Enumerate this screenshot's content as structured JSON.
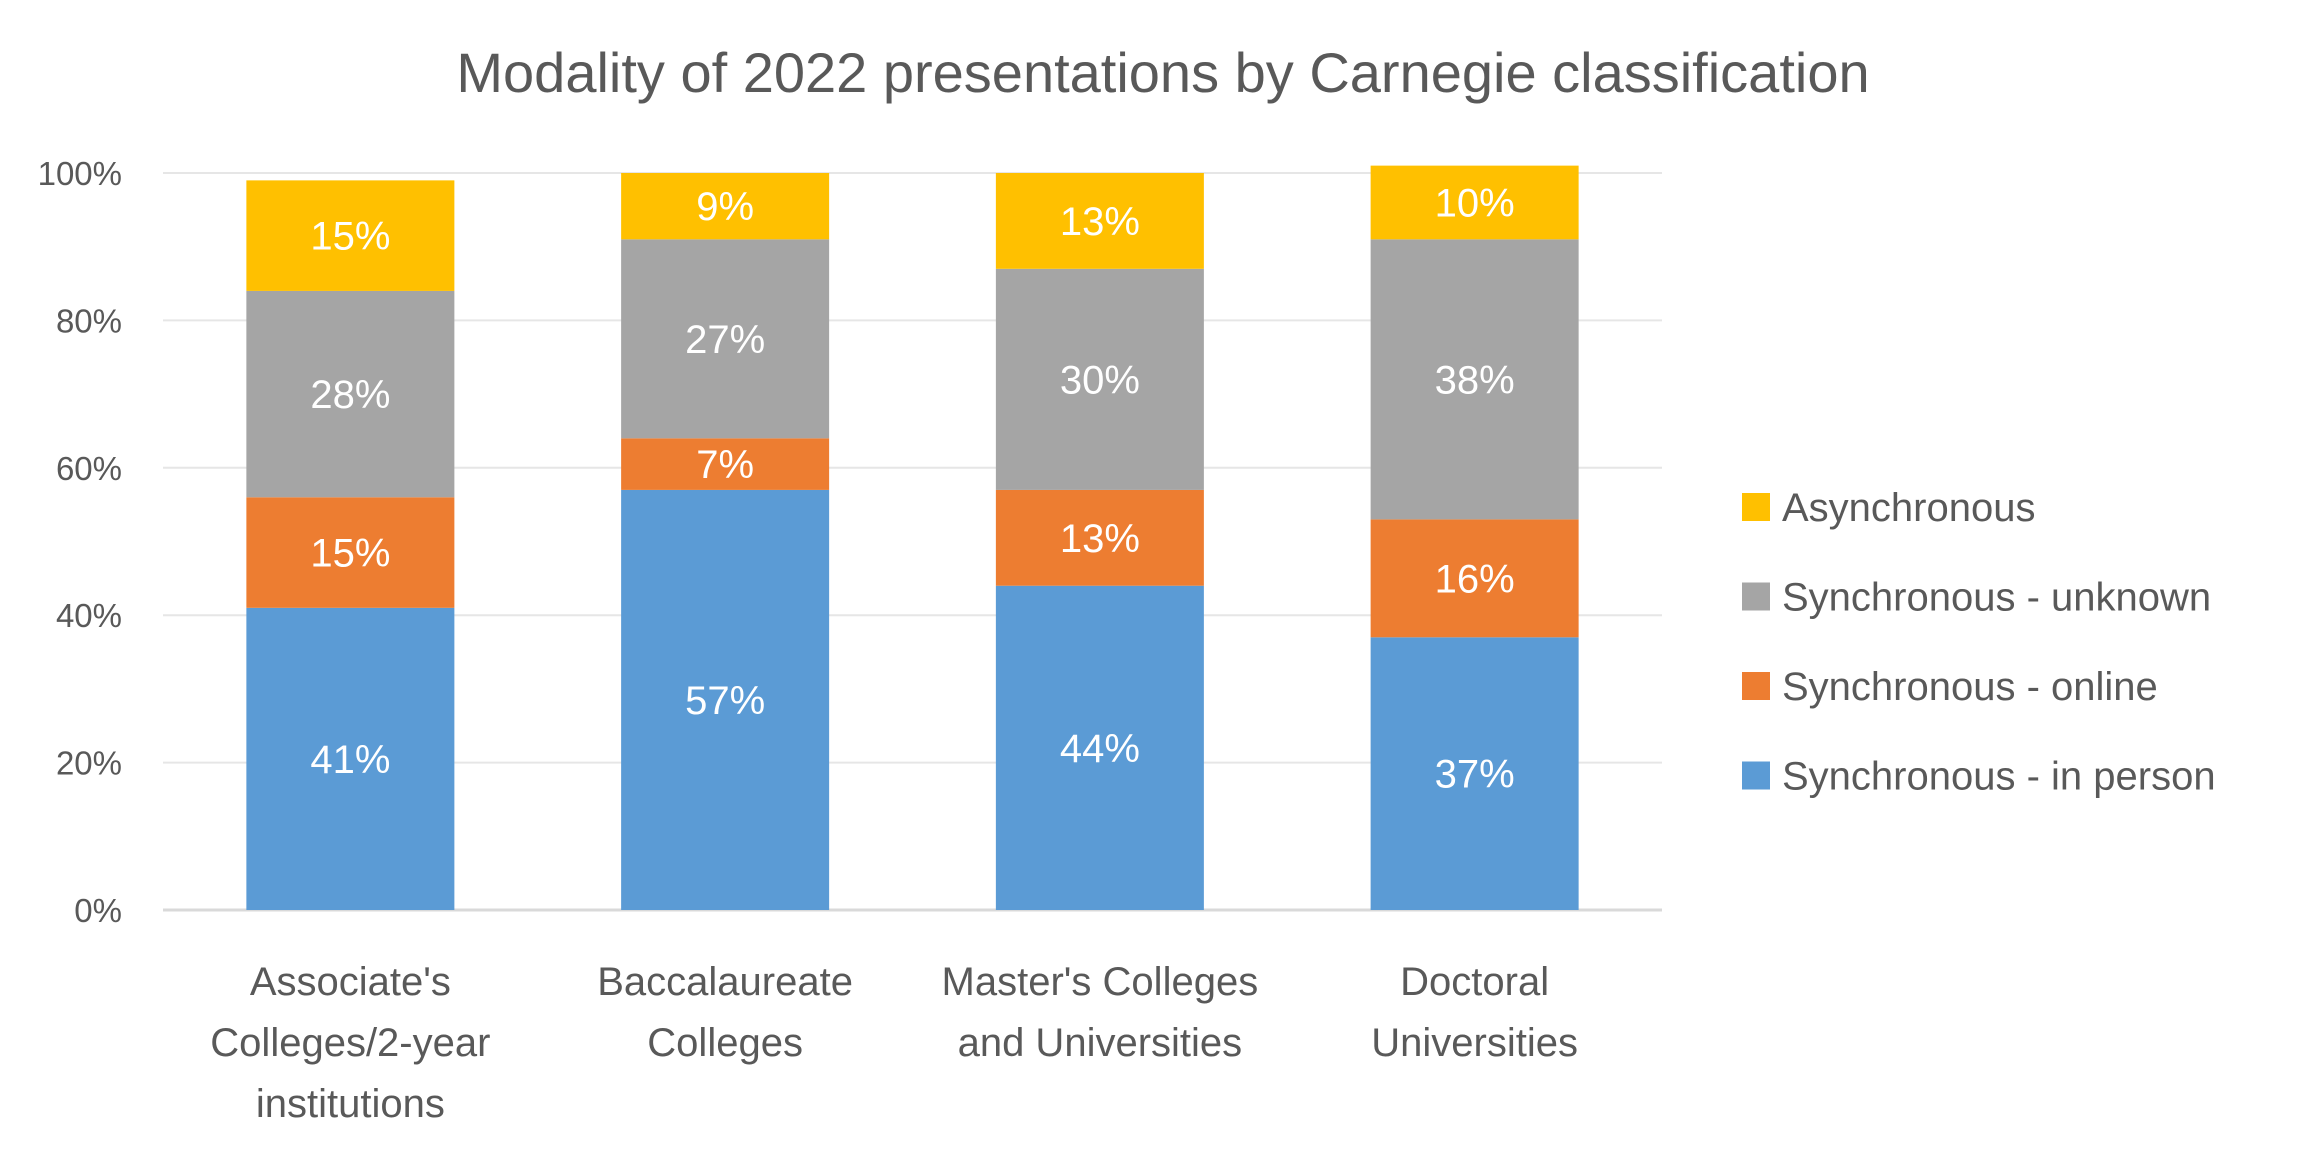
{
  "chart_data": {
    "type": "stacked-bar",
    "title": "Modality of 2022 presentations by Carnegie classification",
    "xlabel": "",
    "ylabel": "",
    "ylim": [
      0,
      100
    ],
    "yticks": [
      "0%",
      "20%",
      "40%",
      "60%",
      "80%",
      "100%"
    ],
    "grid": true,
    "legend_position": "right",
    "categories": [
      [
        "Associate's",
        "Colleges/2-year",
        "institutions"
      ],
      [
        "Baccalaureate",
        "Colleges"
      ],
      [
        "Master's Colleges",
        "and Universities"
      ],
      [
        "Doctoral",
        "Universities"
      ]
    ],
    "series": [
      {
        "name": "Synchronous - in person",
        "color": "#5B9BD5",
        "values": [
          41,
          57,
          44,
          37
        ],
        "labels": [
          "41%",
          "57%",
          "44%",
          "37%"
        ]
      },
      {
        "name": "Synchronous - online",
        "color": "#ED7D31",
        "values": [
          15,
          7,
          13,
          16
        ],
        "labels": [
          "15%",
          "7%",
          "13%",
          "16%"
        ]
      },
      {
        "name": "Synchronous - unknown",
        "color": "#A5A5A5",
        "values": [
          28,
          27,
          30,
          38
        ],
        "labels": [
          "28%",
          "27%",
          "30%",
          "38%"
        ]
      },
      {
        "name": "Asynchronous",
        "color": "#FFC000",
        "values": [
          15,
          9,
          13,
          10
        ],
        "labels": [
          "15%",
          "9%",
          "13%",
          "10%"
        ]
      }
    ]
  }
}
